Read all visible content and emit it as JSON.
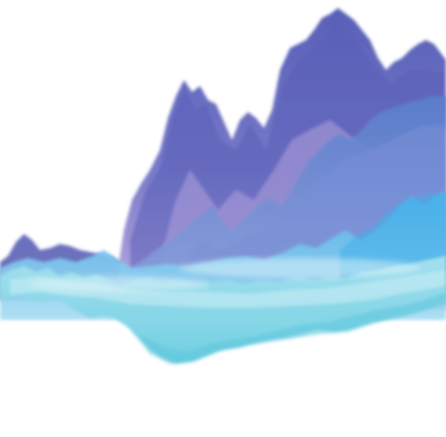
{
  "artwork": {
    "description_visible_text": "",
    "palette": {
      "background": "#ffffff",
      "deep_violet": "#4f57b3",
      "mid_violet": "#6a6fc2",
      "lavender": "#a99bd8",
      "periwinkle": "#5b84cf",
      "sky_blue": "#58b9e8",
      "pale_cyan": "#a6e0ef",
      "aqua": "#6fd0e0"
    }
  }
}
